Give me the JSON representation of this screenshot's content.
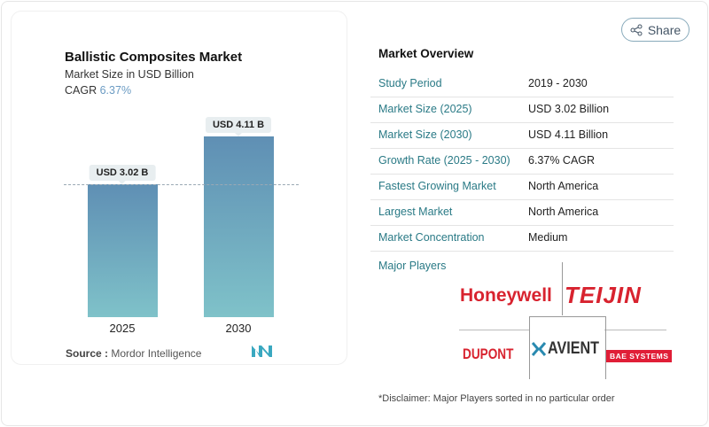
{
  "header": {
    "share_label": "Share",
    "share_icon": "share-icon"
  },
  "chart_panel": {
    "title": "Ballistic Composites Market",
    "subtitle": "Market Size in USD Billion",
    "cagr_label": "CAGR",
    "cagr_value": "6.37%",
    "source_label": "Source :",
    "source_value": "Mordor Intelligence"
  },
  "chart_data": {
    "type": "bar",
    "categories": [
      "2025",
      "2030"
    ],
    "values": [
      3.02,
      4.11
    ],
    "data_labels": [
      "USD 3.02 B",
      "USD 4.11 B"
    ],
    "title": "Ballistic Composites Market",
    "ylabel": "Market Size in USD Billion",
    "ylim": [
      0,
      4.11
    ],
    "grid": false,
    "colors": [
      "#5f8fb4",
      "#7fc2c9"
    ]
  },
  "overview": {
    "title": "Market Overview",
    "rows": [
      {
        "label": "Study Period",
        "value": "2019 - 2030"
      },
      {
        "label": "Market Size (2025)",
        "value": "USD 3.02 Billion"
      },
      {
        "label": "Market Size (2030)",
        "value": "USD 4.11 Billion"
      },
      {
        "label": "Growth Rate (2025 - 2030)",
        "value": "6.37% CAGR"
      },
      {
        "label": "Fastest Growing Market",
        "value": "North America"
      },
      {
        "label": "Largest Market",
        "value": "North America"
      },
      {
        "label": "Market Concentration",
        "value": "Medium"
      }
    ],
    "major_players_label": "Major Players",
    "players": [
      "Honeywell",
      "TEIJIN",
      "DUPONT",
      "AVIENT",
      "BAE SYSTEMS"
    ],
    "disclaimer": "*Disclaimer: Major Players sorted in no particular order"
  }
}
